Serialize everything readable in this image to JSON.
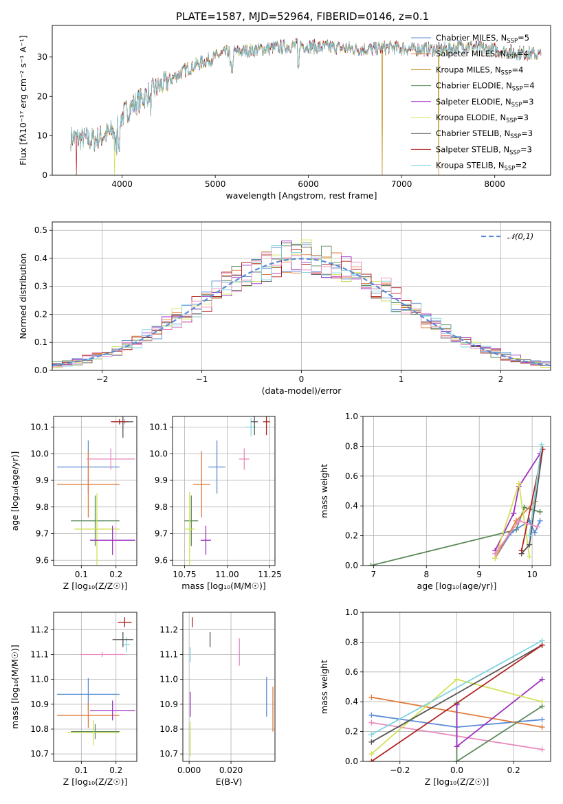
{
  "figure": {
    "title": "PLATE=1587, MJD=52964, FIBERID=0146, z=0.1"
  },
  "chart_data": [
    {
      "type": "line",
      "id": "spectrum",
      "xlabel": "wavelength [Angstrom, rest frame]",
      "ylabel": "Flux [f$_\\lambda$10$^{-17}$ erg cm$^{-2}$ s$^{-1}$ A$^{-1}$]",
      "ylabel_display": "Flux [fλ10⁻¹⁷ erg cm⁻² s⁻¹ A⁻¹]",
      "xlim": [
        3250,
        8600
      ],
      "ylim": [
        0,
        38
      ],
      "xticks": [
        4000,
        5000,
        6000,
        7000,
        8000
      ],
      "yticks": [
        0,
        10,
        20,
        30
      ],
      "grid": false,
      "legend_position": "upper-right",
      "continuum": {
        "x": [
          3450,
          3700,
          3900,
          4000,
          4100,
          4300,
          4500,
          4700,
          4900,
          5100,
          5300,
          5500,
          5700,
          5900,
          6100,
          6300,
          6500,
          6700,
          6900,
          7100,
          7300,
          7500,
          7700,
          7900,
          8100,
          8300,
          8500
        ],
        "y": [
          9.5,
          9,
          11,
          15,
          17.5,
          21,
          24,
          27,
          29,
          31,
          31.5,
          32,
          32.5,
          33,
          32.5,
          32.5,
          32,
          32,
          32.5,
          32,
          32,
          32,
          33,
          32,
          31.5,
          31,
          30.5
        ]
      },
      "drops": [
        {
          "x": 3510,
          "series": "Salpeter STELIB"
        },
        {
          "x": 3920,
          "series": "Kroupa ELODIE"
        },
        {
          "x": 6790,
          "series": "Kroupa MILES"
        },
        {
          "x": 7400,
          "series": "Kroupa MILES"
        }
      ],
      "series": [
        {
          "name": "Chabrier MILES, N",
          "sub": "SSP",
          "value": "=5",
          "color": "#5b8bd6"
        },
        {
          "name": "Salpeter MILES, N",
          "sub": "SSP",
          "value": "=4",
          "color": "#e07b39"
        },
        {
          "name": "Kroupa MILES, N",
          "sub": "SSP",
          "value": "=4",
          "color": "#b8860b"
        },
        {
          "name": "Chabrier ELODIE, N",
          "sub": "SSP",
          "value": "=4",
          "color": "#5a8a5a"
        },
        {
          "name": "Salpeter ELODIE, N",
          "sub": "SSP",
          "value": "=3",
          "color": "#9c2fbf"
        },
        {
          "name": "Kroupa ELODIE, N",
          "sub": "SSP",
          "value": "=3",
          "color": "#d4e157"
        },
        {
          "name": "Chabrier STELIB, N",
          "sub": "SSP",
          "value": "=3",
          "color": "#555555"
        },
        {
          "name": "Salpeter STELIB, N",
          "sub": "SSP",
          "value": "=3",
          "color": "#b22222"
        },
        {
          "name": "Kroupa STELIB, N",
          "sub": "SSP",
          "value": "=2",
          "color": "#7fd3e0"
        }
      ]
    },
    {
      "type": "step",
      "id": "residuals",
      "xlabel": "(data-model)/error",
      "ylabel": "Normed distribution",
      "xlim": [
        -2.5,
        2.5
      ],
      "ylim": [
        0,
        0.53
      ],
      "xticks": [
        -2,
        -1,
        0,
        1,
        2
      ],
      "yticks": [
        0.0,
        0.1,
        0.2,
        0.3,
        0.4,
        0.5
      ],
      "grid": true,
      "legend_position": "upper-right",
      "reference_curve": {
        "name": "𝒩(0,1)",
        "color": "#5b8bd6",
        "style": "dashed"
      },
      "bin_width": 0.1,
      "bin_start": -2.5,
      "series_colors": [
        "#5b8bd6",
        "#e07b39",
        "#5a8a5a",
        "#9c2fbf",
        "#d4e157",
        "#555555",
        "#b22222",
        "#7fd3e0",
        "#e88bbf"
      ]
    },
    {
      "type": "errorbar",
      "id": "age-vs-Z",
      "xlabel": "Z [log$_{10}$(Z/Z$_\\odot$)]",
      "xlabel_display": "Z [log₁₀(Z/Z☉)]",
      "ylabel": "age  [log$_{10}$(age/yr)]",
      "ylabel_display": "age  [log₁₀(age/yr)]",
      "xlim": [
        0.02,
        0.26
      ],
      "ylim": [
        9.58,
        10.14
      ],
      "xticks": [
        0.1,
        0.2
      ],
      "yticks": [
        9.6,
        9.7,
        9.8,
        9.9,
        10.0,
        10.1
      ],
      "grid": true,
      "points": [
        {
          "x": 0.12,
          "y": 9.95,
          "xerr": 0.09,
          "yerr": 0.1,
          "color": "#5b8bd6"
        },
        {
          "x": 0.12,
          "y": 9.885,
          "xerr": 0.09,
          "yerr": 0.125,
          "color": "#e07b39"
        },
        {
          "x": 0.185,
          "y": 9.98,
          "xerr": 0.07,
          "yerr": 0.04,
          "color": "#e88bbf"
        },
        {
          "x": 0.14,
          "y": 9.748,
          "xerr": 0.07,
          "yerr": 0.095,
          "color": "#5a8a5a"
        },
        {
          "x": 0.145,
          "y": 9.717,
          "xerr": 0.065,
          "yerr": 0.135,
          "color": "#d4e157"
        },
        {
          "x": 0.19,
          "y": 9.675,
          "xerr": 0.065,
          "yerr": 0.055,
          "color": "#9c2fbf"
        },
        {
          "x": 0.225,
          "y": 10.12,
          "xerr": 0.02,
          "yerr": 0.01,
          "color": "#7fd3e0"
        },
        {
          "x": 0.22,
          "y": 10.12,
          "xerr": 0.03,
          "yerr": 0.06,
          "color": "#555555"
        },
        {
          "x": 0.21,
          "y": 10.12,
          "xerr": 0.025,
          "yerr": 0.01,
          "color": "#b22222"
        }
      ]
    },
    {
      "type": "errorbar",
      "id": "age-vs-mass",
      "xlabel": "mass [log$_{10}$(M/M$_\\odot$)]",
      "xlabel_display": "mass [log₁₀(M/M☉)]",
      "xlim": [
        10.68,
        11.28
      ],
      "ylim": [
        9.58,
        10.14
      ],
      "xticks": [
        10.75,
        11.0,
        11.25
      ],
      "yticks": [
        9.6,
        9.7,
        9.8,
        9.9,
        10.0,
        10.1
      ],
      "grid": true,
      "points": [
        {
          "x": 10.94,
          "y": 9.95,
          "xerr": 0.05,
          "yerr": 0.1,
          "color": "#5b8bd6"
        },
        {
          "x": 10.85,
          "y": 9.885,
          "xerr": 0.05,
          "yerr": 0.125,
          "color": "#e07b39"
        },
        {
          "x": 11.1,
          "y": 9.98,
          "xerr": 0.03,
          "yerr": 0.04,
          "color": "#e88bbf"
        },
        {
          "x": 10.79,
          "y": 9.748,
          "xerr": 0.04,
          "yerr": 0.095,
          "color": "#5a8a5a"
        },
        {
          "x": 10.78,
          "y": 9.717,
          "xerr": 0.03,
          "yerr": 0.14,
          "color": "#d4e157"
        },
        {
          "x": 10.875,
          "y": 9.675,
          "xerr": 0.03,
          "yerr": 0.055,
          "color": "#9c2fbf"
        },
        {
          "x": 11.14,
          "y": 10.1,
          "xerr": 0.03,
          "yerr": 0.035,
          "color": "#7fd3e0"
        },
        {
          "x": 11.16,
          "y": 10.12,
          "xerr": 0.02,
          "yerr": 0.05,
          "color": "#555555"
        },
        {
          "x": 11.23,
          "y": 10.12,
          "xerr": 0.02,
          "yerr": 0.05,
          "color": "#b22222"
        }
      ]
    },
    {
      "type": "line",
      "id": "massweight-vs-age",
      "xlabel": "age  [log$_{10}$(age/yr)]",
      "xlabel_display": "age  [log₁₀(age/yr)]",
      "ylabel": "mass weight",
      "xlim": [
        6.8,
        10.35
      ],
      "ylim": [
        0,
        1.0
      ],
      "xticks": [
        7,
        8,
        9,
        10
      ],
      "yticks": [
        0.0,
        0.2,
        0.4,
        0.6,
        0.8,
        1.0
      ],
      "grid": true,
      "series": [
        {
          "color": "#5a8a5a",
          "x": [
            6.95,
            9.7,
            9.85,
            10.15
          ],
          "y": [
            0.0,
            0.24,
            0.39,
            0.36
          ]
        },
        {
          "color": "#5b8bd6",
          "x": [
            9.3,
            9.6,
            9.95,
            10.05,
            10.15
          ],
          "y": [
            0.05,
            0.22,
            0.3,
            0.22,
            0.3
          ]
        },
        {
          "color": "#e07b39",
          "x": [
            9.3,
            9.7,
            10.05
          ],
          "y": [
            0.05,
            0.3,
            0.43
          ]
        },
        {
          "color": "#9c2fbf",
          "x": [
            9.3,
            9.65,
            9.75,
            10.15
          ],
          "y": [
            0.1,
            0.35,
            0.53,
            0.75
          ]
        },
        {
          "color": "#d4e157",
          "x": [
            9.3,
            9.75,
            9.95
          ],
          "y": [
            0.05,
            0.55,
            0.06
          ]
        },
        {
          "color": "#555555",
          "x": [
            9.8,
            9.95,
            10.2
          ],
          "y": [
            0.08,
            0.14,
            0.78
          ]
        },
        {
          "color": "#b22222",
          "x": [
            9.8,
            10.2
          ],
          "y": [
            0.1,
            0.78
          ]
        },
        {
          "color": "#7fd3e0",
          "x": [
            9.95,
            10.18
          ],
          "y": [
            0.2,
            0.81
          ]
        },
        {
          "color": "#e88bbf",
          "x": [
            9.3,
            9.75,
            10.1
          ],
          "y": [
            0.08,
            0.3,
            0.26
          ]
        }
      ]
    },
    {
      "type": "errorbar",
      "id": "mass-vs-Z",
      "xlabel": "Z [log$_{10}$(Z/Z$_\\odot$)]",
      "xlabel_display": "Z [log₁₀(Z/Z☉)]",
      "ylabel": "mass [log$_{10}$(M/M$_\\odot$)]",
      "ylabel_display": "mass [log₁₀(M/M☉)]",
      "xlim": [
        0.02,
        0.26
      ],
      "ylim": [
        10.67,
        11.27
      ],
      "xticks": [
        0.1,
        0.2
      ],
      "yticks": [
        10.7,
        10.8,
        10.9,
        11.0,
        11.1,
        11.2
      ],
      "grid": true,
      "points": [
        {
          "x": 0.12,
          "y": 10.94,
          "xerr": 0.09,
          "yerr": 0.065,
          "color": "#5b8bd6"
        },
        {
          "x": 0.12,
          "y": 10.855,
          "xerr": 0.09,
          "yerr": 0.05,
          "color": "#e07b39"
        },
        {
          "x": 0.16,
          "y": 11.1,
          "xerr": 0.065,
          "yerr": 0.01,
          "color": "#e88bbf"
        },
        {
          "x": 0.14,
          "y": 10.79,
          "xerr": 0.07,
          "yerr": 0.03,
          "color": "#5a8a5a"
        },
        {
          "x": 0.135,
          "y": 10.785,
          "xerr": 0.075,
          "yerr": 0.05,
          "color": "#d4e157"
        },
        {
          "x": 0.19,
          "y": 10.875,
          "xerr": 0.065,
          "yerr": 0.04,
          "color": "#9c2fbf"
        },
        {
          "x": 0.23,
          "y": 11.14,
          "xerr": 0.01,
          "yerr": 0.03,
          "color": "#7fd3e0"
        },
        {
          "x": 0.22,
          "y": 11.16,
          "xerr": 0.03,
          "yerr": 0.03,
          "color": "#555555"
        },
        {
          "x": 0.225,
          "y": 11.23,
          "xerr": 0.02,
          "yerr": 0.02,
          "color": "#b22222"
        }
      ]
    },
    {
      "type": "errorbar",
      "id": "mass-vs-EBV",
      "xlabel": "E(B-V)",
      "xlim": [
        -0.003,
        0.041
      ],
      "ylim": [
        10.67,
        11.27
      ],
      "xticks": [
        0.0,
        0.02
      ],
      "xtick_labels": [
        "0.000",
        "0.020"
      ],
      "yticks": [
        10.7,
        10.8,
        10.9,
        11.0,
        11.1,
        11.2
      ],
      "grid": true,
      "points": [
        {
          "x": 0.037,
          "y": 10.93,
          "xerr": 0,
          "yerr": 0.08,
          "color": "#5b8bd6"
        },
        {
          "x": 0.04,
          "y": 10.88,
          "xerr": 0,
          "yerr": 0.09,
          "color": "#e07b39"
        },
        {
          "x": 0.024,
          "y": 11.11,
          "xerr": 0,
          "yerr": 0.055,
          "color": "#e88bbf"
        },
        {
          "x": 0.0005,
          "y": 10.9,
          "xerr": 0,
          "yerr": 0.05,
          "color": "#9c2fbf"
        },
        {
          "x": 0.0005,
          "y": 10.76,
          "xerr": 0,
          "yerr": 0.07,
          "color": "#d4e157"
        },
        {
          "x": 0.0005,
          "y": 11.1,
          "xerr": 0,
          "yerr": 0.03,
          "color": "#7fd3e0"
        },
        {
          "x": 0.01,
          "y": 11.16,
          "xerr": 0,
          "yerr": 0.03,
          "color": "#555555"
        },
        {
          "x": 0.0015,
          "y": 11.23,
          "xerr": 0,
          "yerr": 0.02,
          "color": "#b22222"
        }
      ]
    },
    {
      "type": "line",
      "id": "massweight-vs-Z",
      "xlabel": "Z [log$_{10}$(Z/Z$_\\odot$)]",
      "xlabel_display": "Z [log₁₀(Z/Z☉)]",
      "ylabel": "mass weight",
      "xlim": [
        -0.33,
        0.33
      ],
      "ylim": [
        0,
        1.0
      ],
      "xticks": [
        -0.2,
        0.0,
        0.2
      ],
      "xtick_labels": [
        "−0.2",
        "0.0",
        "0.2"
      ],
      "yticks": [
        0.0,
        0.2,
        0.4,
        0.6,
        0.8,
        1.0
      ],
      "grid": true,
      "series": [
        {
          "color": "#5b8bd6",
          "x": [
            -0.3,
            0.0,
            0.3
          ],
          "y": [
            0.31,
            0.23,
            0.28
          ]
        },
        {
          "color": "#e07b39",
          "x": [
            -0.3,
            0.3
          ],
          "y": [
            0.43,
            0.23
          ]
        },
        {
          "color": "#e88bbf",
          "x": [
            -0.3,
            0.3
          ],
          "y": [
            0.26,
            0.08
          ]
        },
        {
          "color": "#5a8a5a",
          "x": [
            0.0,
            0.0,
            0.3
          ],
          "y": [
            0.39,
            0.0,
            0.37
          ]
        },
        {
          "color": "#9c2fbf",
          "x": [
            0.0,
            0.0,
            0.3
          ],
          "y": [
            0.38,
            0.1,
            0.55
          ]
        },
        {
          "color": "#d4e157",
          "x": [
            -0.3,
            0.0,
            0.3
          ],
          "y": [
            0.05,
            0.55,
            0.4
          ]
        },
        {
          "color": "#555555",
          "x": [
            -0.3,
            0.3
          ],
          "y": [
            0.13,
            0.78
          ]
        },
        {
          "color": "#b22222",
          "x": [
            -0.3,
            0.3
          ],
          "y": [
            0.0,
            0.78
          ]
        },
        {
          "color": "#7fd3e0",
          "x": [
            -0.3,
            0.3
          ],
          "y": [
            0.18,
            0.81
          ]
        }
      ]
    }
  ]
}
